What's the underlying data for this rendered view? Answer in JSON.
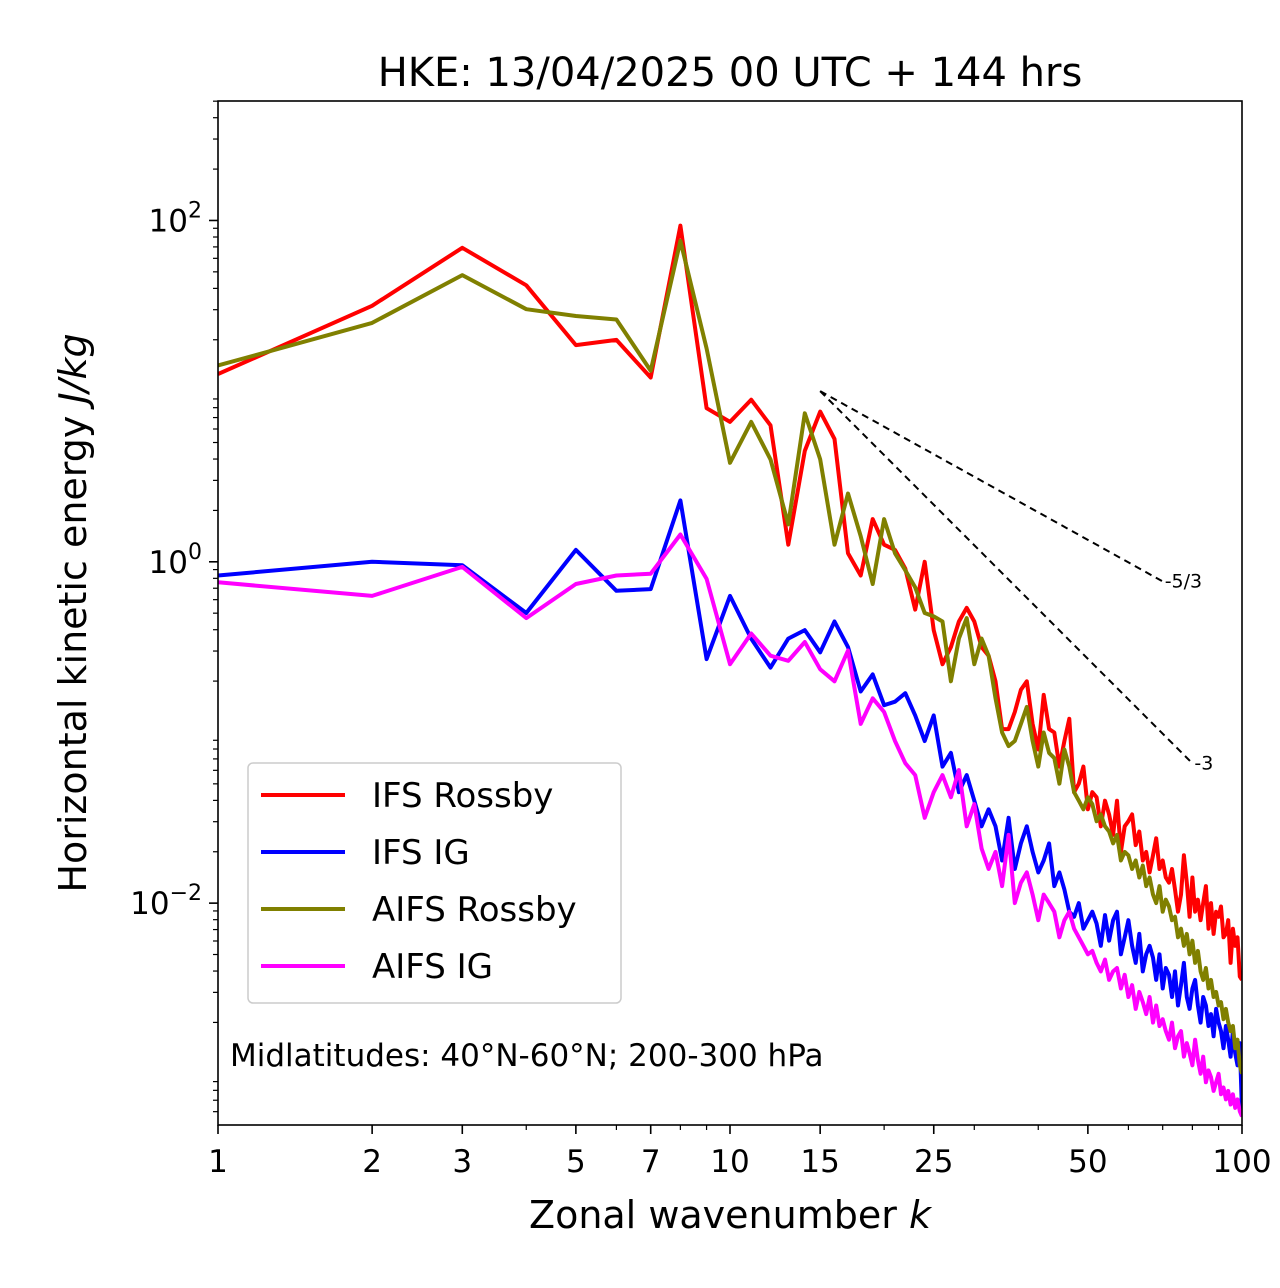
{
  "chart_data": {
    "type": "line",
    "title": "HKE: 13/04/2025 00 UTC + 144 hrs",
    "xlabel_text": "Zonal wavenumber ",
    "xlabel_var": "k",
    "ylabel_text": "Horizontal kinetic energy ",
    "ylabel_var": "J/kg",
    "xscale": "log",
    "yscale": "log",
    "xlim": [
      1,
      100
    ],
    "ylim_log10": [
      -3.3,
      2.7
    ],
    "xticks": [
      {
        "value": 1,
        "label": "1"
      },
      {
        "value": 2,
        "label": "2"
      },
      {
        "value": 3,
        "label": "3"
      },
      {
        "value": 5,
        "label": "5"
      },
      {
        "value": 7,
        "label": "7"
      },
      {
        "value": 10,
        "label": "10"
      },
      {
        "value": 15,
        "label": "15"
      },
      {
        "value": 25,
        "label": "25"
      },
      {
        "value": 50,
        "label": "50"
      },
      {
        "value": 100,
        "label": "100"
      }
    ],
    "yticks": [
      {
        "exp": 2,
        "base": "10",
        "sup": "2"
      },
      {
        "exp": 0,
        "base": "10",
        "sup": "0"
      },
      {
        "exp": -2,
        "base": "10",
        "sup": "−2"
      }
    ],
    "annotation": "Midlatitudes: 40°N-60°N; 200-300 hPa",
    "legend_position": "lower-left",
    "grid": false,
    "reference_slopes": [
      {
        "label": "-5/3",
        "slope": -1.6667,
        "x_start": 15,
        "x_end": 70,
        "log10_y_start": 1.0
      },
      {
        "label": "-3",
        "slope": -3,
        "x_start": 15,
        "x_end": 80,
        "log10_y_start": 1.0
      }
    ],
    "series": [
      {
        "name": "IFS Rossby",
        "color": "#ff0000",
        "log10_values": [
          1.1,
          1.5,
          1.84,
          1.62,
          1.27,
          1.3,
          1.08,
          1.97,
          0.9,
          0.82,
          0.95,
          0.8,
          0.1,
          0.65,
          0.88,
          0.72,
          0.05,
          -0.08,
          0.25,
          0.1,
          0.07,
          -0.04,
          -0.28,
          0.0,
          -0.4,
          -0.6,
          -0.5,
          -0.35,
          -0.27,
          -0.35,
          -0.5,
          -0.55,
          -0.7,
          -0.98,
          -0.98,
          -0.88,
          -0.75,
          -0.7,
          -0.95,
          -1.1,
          -0.78,
          -0.98,
          -1.0,
          -1.2,
          -1.05,
          -0.92,
          -1.35,
          -1.3,
          -1.2,
          -1.45,
          -1.35,
          -1.38,
          -1.55,
          -1.4,
          -1.48,
          -1.6,
          -1.4,
          -1.7,
          -1.55,
          -1.52,
          -1.48,
          -1.66,
          -1.58,
          -1.75,
          -1.7,
          -1.82,
          -1.72,
          -1.62,
          -1.8,
          -1.75,
          -1.85,
          -1.88,
          -1.8,
          -1.92,
          -2.05,
          -1.95,
          -1.72,
          -1.88,
          -2.08,
          -1.85,
          -2.05,
          -1.98,
          -2.1,
          -2.0,
          -1.9,
          -2.15,
          -2.0,
          -2.18,
          -2.05,
          -2.08,
          -2.02,
          -2.2,
          -2.18,
          -2.1,
          -2.35,
          -2.15,
          -2.25,
          -2.2,
          -2.43,
          -2.45
        ]
      },
      {
        "name": "IFS IG",
        "color": "#0000ff",
        "log10_values": [
          -0.08,
          0.0,
          -0.02,
          -0.3,
          0.07,
          -0.17,
          -0.16,
          0.36,
          -0.57,
          -0.2,
          -0.45,
          -0.62,
          -0.45,
          -0.4,
          -0.53,
          -0.35,
          -0.5,
          -0.76,
          -0.66,
          -0.84,
          -0.82,
          -0.77,
          -0.9,
          -1.05,
          -0.9,
          -1.2,
          -1.12,
          -1.35,
          -1.25,
          -1.4,
          -1.55,
          -1.45,
          -1.55,
          -1.75,
          -1.5,
          -1.8,
          -1.65,
          -1.55,
          -1.7,
          -1.82,
          -1.75,
          -1.65,
          -1.9,
          -1.82,
          -1.92,
          -2.05,
          -2.08,
          -2.0,
          -2.15,
          -2.1,
          -2.05,
          -2.12,
          -2.25,
          -2.07,
          -2.22,
          -2.1,
          -2.05,
          -2.3,
          -2.2,
          -2.1,
          -2.25,
          -2.35,
          -2.18,
          -2.4,
          -2.3,
          -2.25,
          -2.32,
          -2.45,
          -2.3,
          -2.5,
          -2.38,
          -2.42,
          -2.55,
          -2.4,
          -2.6,
          -2.48,
          -2.35,
          -2.55,
          -2.62,
          -2.5,
          -2.45,
          -2.6,
          -2.7,
          -2.55,
          -2.6,
          -2.72,
          -2.65,
          -2.78,
          -2.62,
          -2.7,
          -2.75,
          -2.85,
          -2.72,
          -2.8,
          -2.9,
          -2.75,
          -2.88,
          -2.95,
          -2.82,
          -3.22
        ]
      },
      {
        "name": "AIFS Rossby",
        "color": "#808000",
        "log10_values": [
          1.15,
          1.4,
          1.68,
          1.48,
          1.44,
          1.42,
          1.12,
          1.88,
          1.25,
          0.58,
          0.82,
          0.6,
          0.22,
          0.87,
          0.6,
          0.1,
          0.4,
          0.15,
          -0.13,
          0.25,
          0.05,
          -0.05,
          -0.15,
          -0.3,
          -0.32,
          -0.35,
          -0.7,
          -0.45,
          -0.33,
          -0.6,
          -0.45,
          -0.55,
          -0.8,
          -1.0,
          -1.08,
          -1.05,
          -0.95,
          -0.85,
          -1.05,
          -1.2,
          -1.0,
          -1.12,
          -1.15,
          -1.3,
          -1.1,
          -1.2,
          -1.35,
          -1.4,
          -1.45,
          -1.38,
          -1.42,
          -1.52,
          -1.48,
          -1.55,
          -1.58,
          -1.65,
          -1.6,
          -1.75,
          -1.7,
          -1.72,
          -1.8,
          -1.75,
          -1.85,
          -1.78,
          -1.9,
          -1.85,
          -1.95,
          -2.0,
          -1.9,
          -2.05,
          -1.98,
          -2.02,
          -2.1,
          -2.08,
          -2.2,
          -2.15,
          -2.25,
          -2.18,
          -2.3,
          -2.22,
          -2.35,
          -2.28,
          -2.4,
          -2.45,
          -2.38,
          -2.5,
          -2.45,
          -2.55,
          -2.52,
          -2.6,
          -2.58,
          -2.68,
          -2.62,
          -2.7,
          -2.75,
          -2.72,
          -2.85,
          -2.8,
          -2.95,
          -3.0
        ]
      },
      {
        "name": "AIFS IG",
        "color": "#ff00ff",
        "log10_values": [
          -0.12,
          -0.2,
          -0.03,
          -0.33,
          -0.13,
          -0.08,
          -0.07,
          0.16,
          -0.1,
          -0.6,
          -0.42,
          -0.55,
          -0.58,
          -0.47,
          -0.63,
          -0.7,
          -0.52,
          -0.95,
          -0.8,
          -0.88,
          -1.05,
          -1.18,
          -1.25,
          -1.5,
          -1.35,
          -1.25,
          -1.38,
          -1.22,
          -1.55,
          -1.42,
          -1.68,
          -1.8,
          -1.7,
          -1.9,
          -1.6,
          -2.0,
          -1.88,
          -1.82,
          -1.95,
          -2.1,
          -1.95,
          -2.0,
          -2.05,
          -2.2,
          -2.1,
          -2.05,
          -2.15,
          -2.2,
          -2.25,
          -2.3,
          -2.28,
          -2.35,
          -2.4,
          -2.33,
          -2.45,
          -2.4,
          -2.38,
          -2.5,
          -2.42,
          -2.55,
          -2.48,
          -2.62,
          -2.52,
          -2.58,
          -2.65,
          -2.55,
          -2.7,
          -2.6,
          -2.72,
          -2.68,
          -2.75,
          -2.8,
          -2.7,
          -2.85,
          -2.78,
          -2.75,
          -2.9,
          -2.82,
          -2.88,
          -2.95,
          -2.8,
          -2.92,
          -3.0,
          -2.9,
          -3.05,
          -2.98,
          -3.02,
          -3.1,
          -3.05,
          -3.0,
          -3.12,
          -3.08,
          -3.15,
          -3.1,
          -3.18,
          -3.12,
          -3.2,
          -3.15,
          -3.22,
          -3.25
        ]
      }
    ]
  }
}
